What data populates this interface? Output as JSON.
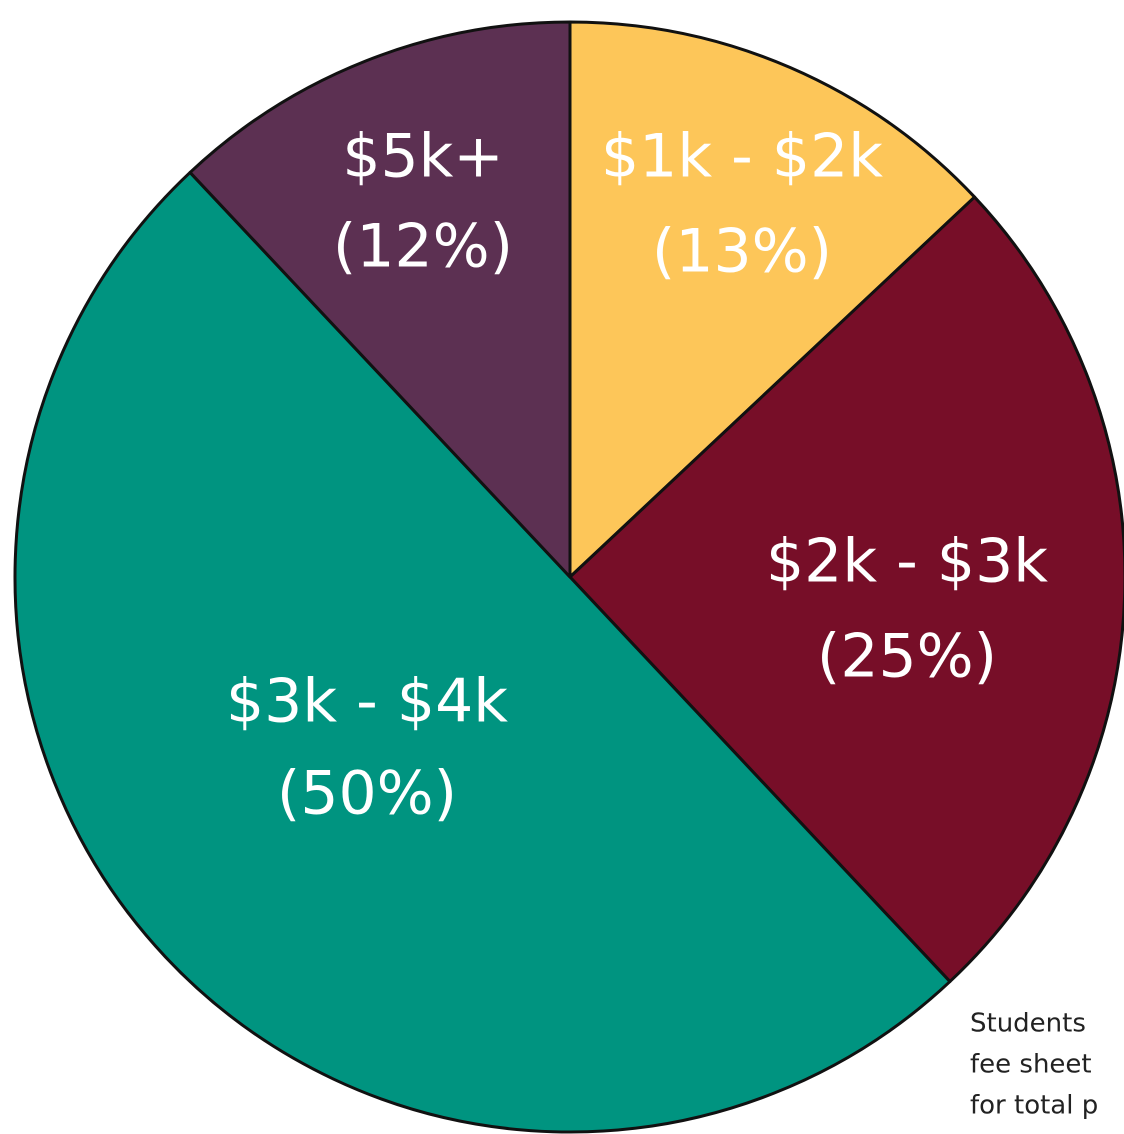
{
  "chart_data": {
    "type": "pie",
    "categories": [
      "$1k - $2k",
      "$2k - $3k",
      "$3k - $4k",
      "$5k+"
    ],
    "values": [
      13,
      25,
      50,
      12
    ],
    "value_labels": [
      "(13%)",
      "(25%)",
      "(50%)",
      "(12%)"
    ],
    "colors": [
      "#fdc659",
      "#770e28",
      "#009480",
      "#5c3052"
    ],
    "annotation": [
      "Students",
      "fee sheet",
      "for total p"
    ]
  }
}
